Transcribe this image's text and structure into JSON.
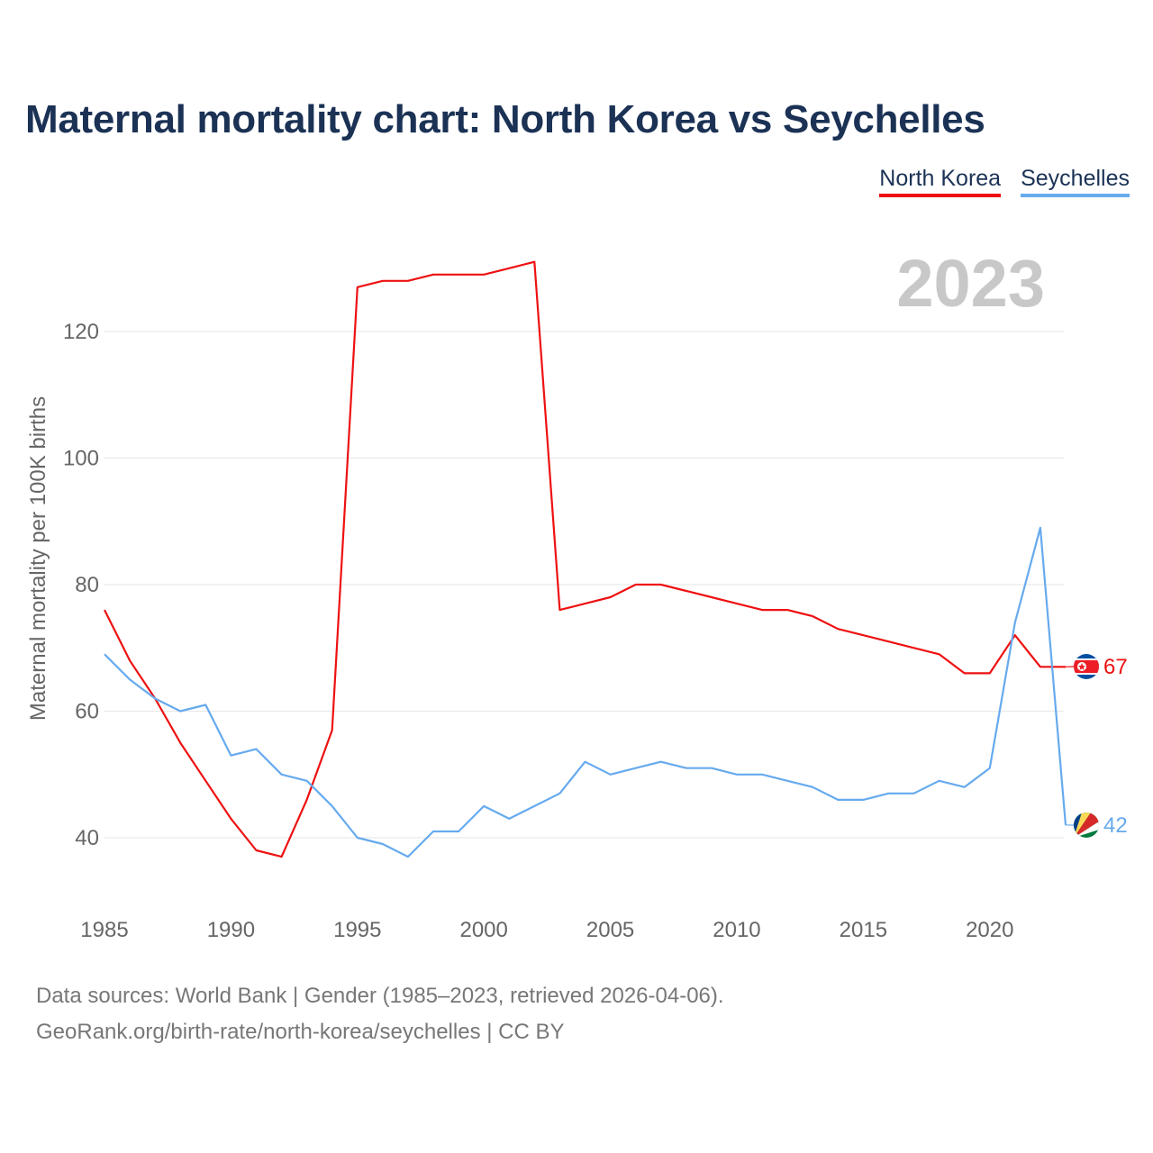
{
  "page": {
    "title": "Maternal mortality chart: North Korea vs Seychelles",
    "year_label": "2023",
    "source_line_1": "Data sources: World Bank | Gender (1985–2023, retrieved 2026-04-06).",
    "source_line_2": "GeoRank.org/birth-rate/north-korea/seychelles | CC BY"
  },
  "colors": {
    "title": "#1b3255",
    "north_korea": "#ee1111",
    "seychelles": "#66aaee",
    "grid": "#e6e6e6",
    "axis_text": "#666666",
    "year_watermark": "#c8c8c8"
  },
  "chart_data": {
    "type": "line",
    "title": "Maternal mortality chart: North Korea vs Seychelles",
    "xlabel": "",
    "ylabel": "Maternal mortality per 100K births",
    "xlim": [
      1985,
      2023
    ],
    "ylim": [
      30,
      135
    ],
    "x_ticks": [
      1985,
      1990,
      1995,
      2000,
      2005,
      2010,
      2015,
      2020
    ],
    "y_ticks": [
      40,
      60,
      80,
      100,
      120
    ],
    "grid": true,
    "legend_position": "top-right",
    "x": [
      1985,
      1986,
      1987,
      1988,
      1989,
      1990,
      1991,
      1992,
      1993,
      1994,
      1995,
      1996,
      1997,
      1998,
      1999,
      2000,
      2001,
      2002,
      2003,
      2004,
      2005,
      2006,
      2007,
      2008,
      2009,
      2010,
      2011,
      2012,
      2013,
      2014,
      2015,
      2016,
      2017,
      2018,
      2019,
      2020,
      2021,
      2022,
      2023
    ],
    "series": [
      {
        "name": "North Korea",
        "color": "#ee1111",
        "end_label": "67",
        "flag_icon": "north-korea-flag-icon",
        "values": [
          76,
          68,
          62,
          55,
          49,
          43,
          38,
          37,
          46,
          57,
          127,
          128,
          128,
          129,
          129,
          129,
          130,
          131,
          76,
          77,
          78,
          80,
          80,
          79,
          78,
          77,
          76,
          76,
          75,
          73,
          72,
          71,
          70,
          69,
          66,
          66,
          72,
          67,
          67
        ]
      },
      {
        "name": "Seychelles",
        "color": "#66aaee",
        "end_label": "42",
        "flag_icon": "seychelles-flag-icon",
        "values": [
          69,
          65,
          62,
          60,
          61,
          53,
          54,
          50,
          49,
          45,
          40,
          39,
          37,
          41,
          41,
          45,
          43,
          45,
          47,
          52,
          50,
          51,
          52,
          51,
          51,
          50,
          50,
          49,
          48,
          46,
          46,
          47,
          47,
          49,
          48,
          51,
          74,
          89,
          42
        ]
      }
    ]
  }
}
